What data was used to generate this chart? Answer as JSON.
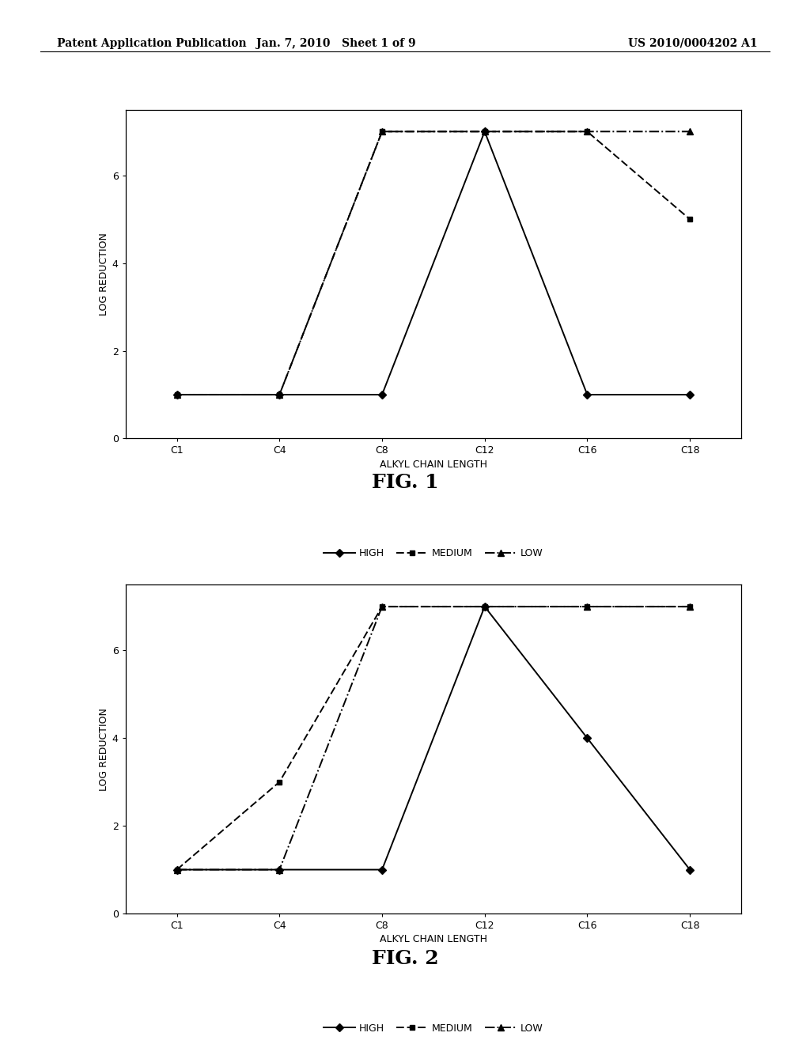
{
  "header_left": "Patent Application Publication",
  "header_mid": "Jan. 7, 2010   Sheet 1 of 9",
  "header_right": "US 2010/0004202 A1",
  "x_labels": [
    "C1",
    "C4",
    "C8",
    "C12",
    "C16",
    "C18"
  ],
  "x_positions": [
    0,
    1,
    2,
    3,
    4,
    5
  ],
  "fig1": {
    "high": [
      1,
      1,
      1,
      7,
      1,
      1
    ],
    "medium": [
      1,
      1,
      7,
      7,
      7,
      5
    ],
    "low": [
      1,
      1,
      7,
      7,
      7,
      7
    ],
    "title": "FIG. 1"
  },
  "fig2": {
    "high": [
      1,
      1,
      1,
      7,
      4,
      1
    ],
    "medium": [
      1,
      3,
      7,
      7,
      7,
      7
    ],
    "low": [
      1,
      1,
      7,
      7,
      7,
      7
    ],
    "title": "FIG. 2"
  },
  "xlabel": "ALKYL CHAIN LENGTH",
  "ylabel": "LOG REDUCTION",
  "ylim": [
    0,
    7.5
  ],
  "yticks": [
    0,
    2,
    4,
    6
  ],
  "legend_labels": [
    "HIGH",
    "MEDIUM",
    "LOW"
  ],
  "bg_color": "#ffffff",
  "header_fontsize": 10,
  "axis_label_fontsize": 9,
  "tick_fontsize": 9,
  "legend_fontsize": 9,
  "fig_label_fontsize": 18
}
